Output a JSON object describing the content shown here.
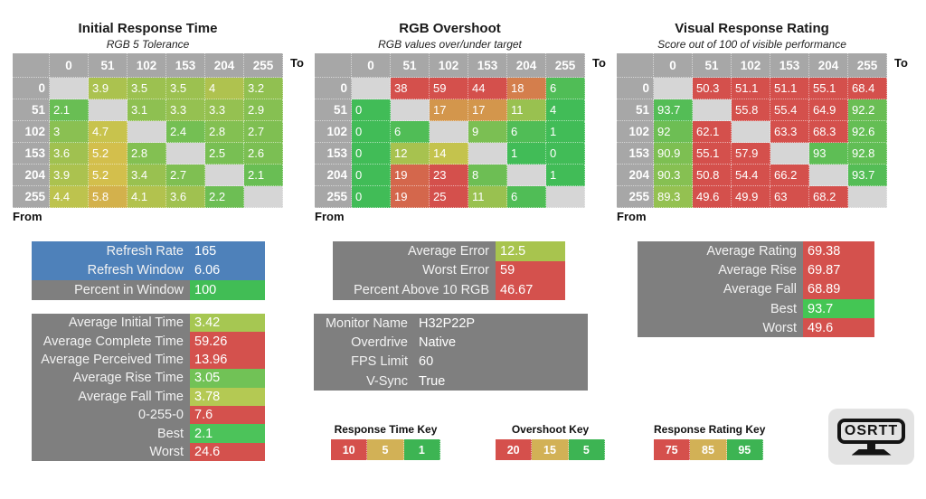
{
  "palette": {
    "header_gray": "#a7a7a7",
    "blank_cell": "#d6d6d6",
    "label_gray": "#7f7f7f",
    "refresh_blue": "#4e81ba",
    "scale_green": "#41bc57",
    "scale_yellow": "#d3c44c",
    "scale_red": "#d4504c",
    "key_red": "#d5504c",
    "key_tan": "#d2b156",
    "key_green": "#3db453"
  },
  "chart_data": [
    {
      "type": "heatmap",
      "title": "Initial Response Time",
      "subtitle": "RGB 5 Tolerance",
      "xlabel": "To",
      "ylabel": "From",
      "categories": [
        "0",
        "51",
        "102",
        "153",
        "204",
        "255"
      ],
      "rows": [
        [
          null,
          3.9,
          3.5,
          3.5,
          4,
          3.2
        ],
        [
          2.1,
          null,
          3.1,
          3.3,
          3.3,
          2.9
        ],
        [
          3,
          4.7,
          null,
          2.4,
          2.8,
          2.7
        ],
        [
          3.6,
          5.2,
          2.8,
          null,
          2.5,
          2.6
        ],
        [
          3.9,
          5.2,
          3.4,
          2.7,
          null,
          2.1
        ],
        [
          4.4,
          5.8,
          4.1,
          3.6,
          2.2,
          null
        ]
      ],
      "scale": {
        "green": 1,
        "yellow": 5,
        "red": 10
      }
    },
    {
      "type": "heatmap",
      "title": "RGB Overshoot",
      "subtitle": "RGB values over/under target",
      "xlabel": "To",
      "ylabel": "From",
      "categories": [
        "0",
        "51",
        "102",
        "153",
        "204",
        "255"
      ],
      "rows": [
        [
          null,
          38,
          59,
          44,
          18,
          6
        ],
        [
          0,
          null,
          17,
          17,
          11,
          4
        ],
        [
          0,
          6,
          null,
          9,
          6,
          1
        ],
        [
          0,
          12,
          14,
          null,
          1,
          0
        ],
        [
          0,
          19,
          23,
          8,
          null,
          1
        ],
        [
          0,
          19,
          25,
          11,
          6,
          null
        ]
      ],
      "scale": {
        "green": 5,
        "yellow": 15,
        "red": 20
      }
    },
    {
      "type": "heatmap",
      "title": "Visual Response Rating",
      "subtitle": "Score out of 100 of visible performance",
      "xlabel": "To",
      "ylabel": "From",
      "categories": [
        "0",
        "51",
        "102",
        "153",
        "204",
        "255"
      ],
      "rows": [
        [
          null,
          50.3,
          51.1,
          51.1,
          55.1,
          68.4
        ],
        [
          93.7,
          null,
          55.8,
          55.4,
          64.9,
          92.2
        ],
        [
          92,
          62.1,
          null,
          63.3,
          68.3,
          92.6
        ],
        [
          90.9,
          55.1,
          57.9,
          null,
          93,
          92.8
        ],
        [
          90.3,
          50.8,
          54.4,
          66.2,
          null,
          93.7
        ],
        [
          89.3,
          49.6,
          49.9,
          63,
          68.2,
          null
        ]
      ],
      "scale": {
        "green": 95,
        "yellow": 85,
        "red": 75
      }
    }
  ],
  "summary_blocks": [
    {
      "id": "refresh",
      "rows": [
        {
          "label": "Refresh Rate",
          "value": "165",
          "label_bg": "#4e81ba",
          "value_bg": "#4e81ba"
        },
        {
          "label": "Refresh Window",
          "value": "6.06",
          "label_bg": "#4e81ba",
          "value_bg": "#4e81ba"
        },
        {
          "label": "Percent in Window",
          "value": "100",
          "value_bg": "#41bd55"
        }
      ]
    },
    {
      "id": "times",
      "rows": [
        {
          "label": "Average Initial Time",
          "value": "3.42",
          "value_bg": "#a6c752"
        },
        {
          "label": "Average Complete Time",
          "value": "59.26",
          "value_bg": "#d4514d"
        },
        {
          "label": "Average Perceived Time",
          "value": "13.96",
          "value_bg": "#d4514d"
        },
        {
          "label": "Average Rise Time",
          "value": "3.05",
          "value_bg": "#71c256"
        },
        {
          "label": "Average Fall Time",
          "value": "3.78",
          "value_bg": "#b4c953"
        },
        {
          "label": "0-255-0",
          "value": "7.6",
          "value_bg": "#d4514d"
        },
        {
          "label": "Best",
          "value": "2.1",
          "value_bg": "#4cc35a"
        },
        {
          "label": "Worst",
          "value": "24.6",
          "value_bg": "#d4514d"
        }
      ]
    },
    {
      "id": "error",
      "rows": [
        {
          "label": "Average Error",
          "value": "12.5",
          "value_bg": "#a8c44e"
        },
        {
          "label": "Worst Error",
          "value": "59",
          "value_bg": "#d4514d"
        },
        {
          "label": "Percent Above 10 RGB",
          "value": "46.67",
          "value_bg": "#d4514d"
        }
      ]
    },
    {
      "id": "monitor",
      "rows": [
        {
          "label": "Monitor Name",
          "value": "H32P22P",
          "value_bg": "#7f7f7f"
        },
        {
          "label": "Overdrive",
          "value": "Native",
          "value_bg": "#7f7f7f"
        },
        {
          "label": "FPS Limit",
          "value": "60",
          "value_bg": "#7f7f7f"
        },
        {
          "label": "V-Sync",
          "value": "True",
          "value_bg": "#7f7f7f"
        }
      ]
    },
    {
      "id": "rating",
      "rows": [
        {
          "label": "Average Rating",
          "value": "69.38",
          "value_bg": "#d4514d"
        },
        {
          "label": "Average Rise",
          "value": "69.87",
          "value_bg": "#d4514d"
        },
        {
          "label": "Average Fall",
          "value": "68.89",
          "value_bg": "#d4514d"
        },
        {
          "label": "Best",
          "value": "93.7",
          "value_bg": "#44c654"
        },
        {
          "label": "Worst",
          "value": "49.6",
          "value_bg": "#d4514d"
        }
      ]
    }
  ],
  "keys": [
    {
      "id": "response-time",
      "title": "Response Time Key",
      "segments": [
        {
          "label": "10",
          "color": "#d5504c"
        },
        {
          "label": "5",
          "color": "#d2b156"
        },
        {
          "label": "1",
          "color": "#3db453"
        }
      ]
    },
    {
      "id": "overshoot",
      "title": "Overshoot Key",
      "segments": [
        {
          "label": "20",
          "color": "#d5504c"
        },
        {
          "label": "15",
          "color": "#d2b156"
        },
        {
          "label": "5",
          "color": "#3db453"
        }
      ]
    },
    {
      "id": "response-rating",
      "title": "Response Rating Key",
      "segments": [
        {
          "label": "75",
          "color": "#d5504c"
        },
        {
          "label": "85",
          "color": "#d2b156"
        },
        {
          "label": "95",
          "color": "#3db453"
        }
      ]
    }
  ],
  "logo": {
    "text": "OSRTT"
  }
}
